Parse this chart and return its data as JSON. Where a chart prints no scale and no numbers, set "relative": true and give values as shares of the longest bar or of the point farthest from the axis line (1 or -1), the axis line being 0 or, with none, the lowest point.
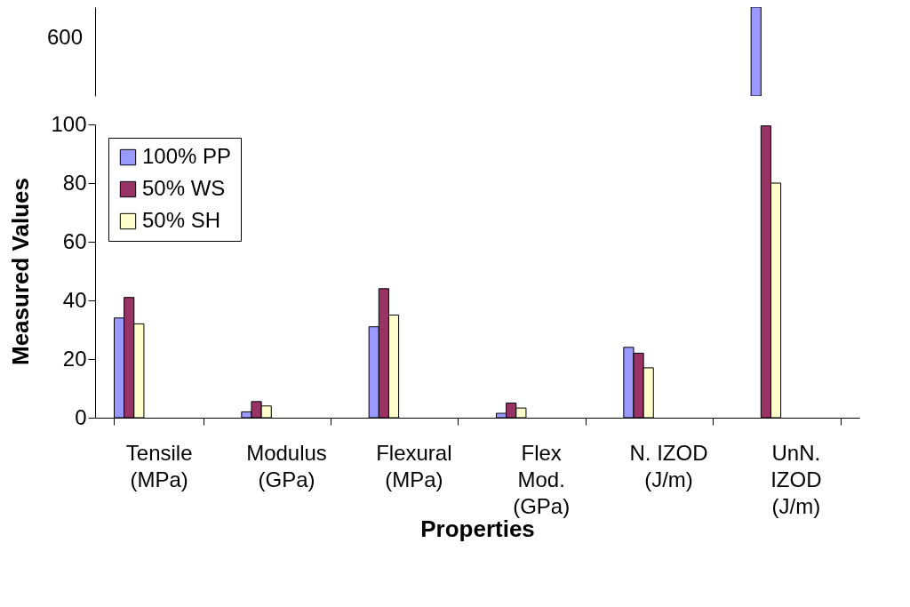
{
  "chart_data": [
    {
      "type": "bar",
      "categories": [
        null
      ],
      "relative": true,
      "annotations": [
        "600"
      ],
      "tick_labels": false,
      "grid": false,
      "series": [
        {
          "color": "#9999ff",
          "values": [
            1
          ]
        }
      ]
    },
    {
      "type": "bar",
      "categories": [
        "Tensile\n(MPa)",
        "Modulus\n(GPa)",
        "Flexural\n(MPa)",
        "Flex\nMod.\n(GPa)",
        "N. IZOD\n(J/m)",
        "UnN.\nIZOD\n(J/m)"
      ],
      "xlabel": "Properties",
      "ylabel": "Measured Values",
      "ylim": [
        0,
        100
      ],
      "yticks": [
        0,
        20,
        40,
        60,
        80,
        100
      ],
      "grid": false,
      "legend": "top left",
      "series": [
        {
          "name": "100% PP",
          "color": "#9999ff",
          "values": [
            34,
            2,
            31,
            1.5,
            24,
            null
          ]
        },
        {
          "name": "50% WS",
          "color": "#993366",
          "values": [
            41,
            5.5,
            44,
            5,
            22,
            99.5
          ]
        },
        {
          "name": "50% SH",
          "color": "#ffffcc",
          "values": [
            32,
            4,
            35,
            3.3,
            17,
            80
          ]
        }
      ]
    }
  ]
}
